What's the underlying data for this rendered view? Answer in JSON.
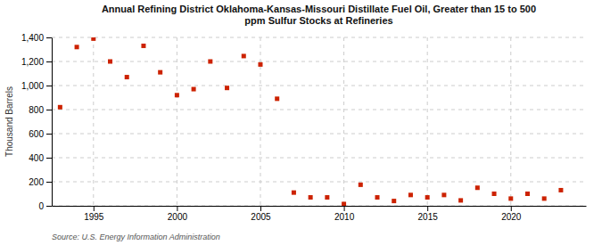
{
  "chart_data": {
    "type": "scatter",
    "title": "Annual Refining District Oklahoma-Kansas-Missouri Distillate Fuel Oil, Greater than 15 to 500\nppm Sulfur Stocks at Refineries",
    "ylabel": "Thousand Barrels",
    "annotations": [
      "Source: U.S. Energy Information Administration"
    ],
    "x": [
      1993,
      1994,
      1995,
      1996,
      1997,
      1998,
      1999,
      2000,
      2001,
      2002,
      2003,
      2004,
      2005,
      2006,
      2007,
      2008,
      2009,
      2010,
      2011,
      2012,
      2013,
      2014,
      2015,
      2016,
      2017,
      2018,
      2019,
      2020,
      2021,
      2022,
      2023
    ],
    "values": [
      820,
      1320,
      1390,
      1200,
      1070,
      1330,
      1110,
      920,
      970,
      1200,
      980,
      1245,
      1175,
      890,
      110,
      70,
      70,
      15,
      175,
      70,
      40,
      90,
      70,
      90,
      45,
      150,
      100,
      60,
      100,
      60,
      130
    ],
    "color": "#cc2200",
    "marker": "square",
    "xlim": [
      1992.5,
      2024.5
    ],
    "xticks": [
      1995,
      2000,
      2005,
      2010,
      2015,
      2020
    ],
    "ylim": [
      0,
      1400
    ],
    "yticks": [
      0,
      200,
      400,
      600,
      800,
      {
        "value": 1000,
        "label": "1,000"
      },
      {
        "value": 1200,
        "label": "1,200"
      },
      {
        "value": 1400,
        "label": "1,400"
      }
    ],
    "grid": true
  }
}
